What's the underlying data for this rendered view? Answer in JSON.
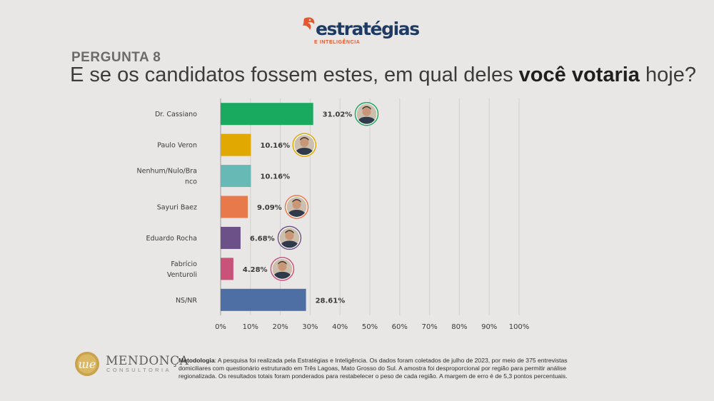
{
  "brand": {
    "name": "estratégias",
    "tagline": "E INTELIGÊNCIA"
  },
  "question": {
    "number": "PERGUNTA 8",
    "text_before": "E se os candidatos fossem estes, em qual deles ",
    "text_bold": "você votaria",
    "text_after": " hoje?"
  },
  "chart_data": {
    "type": "bar",
    "orientation": "horizontal",
    "categories": [
      "Dr. Cassiano",
      "Paulo Veron",
      "Nenhum/Nulo/Branco",
      "Sayuri Baez",
      "Eduardo Rocha",
      "Fabrício Venturoli",
      "NS/NR"
    ],
    "category_label_lines": [
      [
        "Dr. Cassiano"
      ],
      [
        "Paulo Veron"
      ],
      [
        "Nenhum/Nulo/Bra",
        "nco"
      ],
      [
        "Sayuri Baez"
      ],
      [
        "Eduardo Rocha"
      ],
      [
        "Fabrício",
        "Venturoli"
      ],
      [
        "NS/NR"
      ]
    ],
    "values": [
      31.02,
      10.16,
      10.16,
      9.09,
      6.68,
      4.28,
      28.61
    ],
    "value_labels": [
      "31.02%",
      "10.16%",
      "10.16%",
      "9.09%",
      "6.68%",
      "4.28%",
      "28.61%"
    ],
    "colors": [
      "#1aaa5f",
      "#e0a800",
      "#67b9b6",
      "#e8794a",
      "#6b5187",
      "#c9527b",
      "#4d6fa3"
    ],
    "has_photo": [
      true,
      true,
      false,
      true,
      true,
      true,
      false
    ],
    "photo_ring_colors": [
      "#1aaa5f",
      "#e0a800",
      "",
      "#e8794a",
      "#6b5187",
      "#c9527b",
      ""
    ],
    "xlim": [
      0,
      100
    ],
    "x_ticks": [
      0,
      10,
      20,
      30,
      40,
      50,
      60,
      70,
      80,
      90,
      100
    ],
    "x_tick_labels": [
      "0%",
      "10%",
      "20%",
      "30%",
      "40%",
      "50%",
      "60%",
      "70%",
      "80%",
      "90%",
      "100%"
    ],
    "grid": true
  },
  "footer": {
    "company": "MENDONÇA",
    "company_sub": "CONSULTORIA",
    "method_label": "Metodologia",
    "method_text": ": A pesquisa foi realizada pela Estratégias e Inteligência. Os dados foram coletados de julho de 2023, por meio de 375 entrevistas domiciliares com questionário estruturado em Três Lagoas, Mato Grosso do Sul. A amostra foi desproporcional por região para permitir análise regionalizada. Os resultados totais foram ponderados para restabelecer o peso de cada região. A margem de erro é de 5,3 pontos percentuais."
  }
}
